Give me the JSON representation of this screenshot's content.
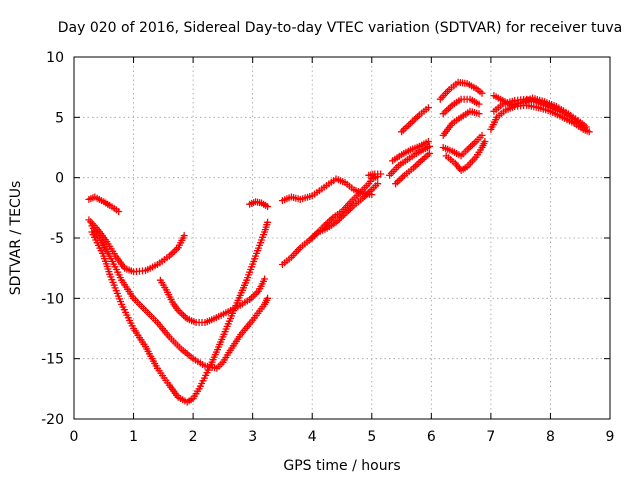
{
  "chart_data": {
    "type": "scatter",
    "title": "Day 020 of 2016, Sidereal Day-to-day VTEC variation (SDTVAR) for receiver tuva",
    "xlabel": "GPS time / hours",
    "ylabel": "SDTVAR / TECUs",
    "xlim": [
      0,
      9
    ],
    "ylim": [
      -20,
      10
    ],
    "xticks": [
      0,
      1,
      2,
      3,
      4,
      5,
      6,
      7,
      8,
      9
    ],
    "yticks": [
      -20,
      -15,
      -10,
      -5,
      0,
      5,
      10
    ],
    "grid": true,
    "legend": "none",
    "marker": "plus",
    "series_color": "#ff0000",
    "series": [
      {
        "points": [
          [
            0.25,
            -1.8
          ],
          [
            0.35,
            -1.6
          ],
          [
            0.5,
            -2.0
          ],
          [
            0.6,
            -2.3
          ],
          [
            0.75,
            -2.8
          ]
        ]
      },
      {
        "points": [
          [
            0.25,
            -3.5
          ],
          [
            0.4,
            -4.3
          ],
          [
            0.55,
            -5.3
          ],
          [
            0.7,
            -6.5
          ],
          [
            0.85,
            -7.5
          ],
          [
            1.0,
            -7.8
          ],
          [
            1.2,
            -7.7
          ],
          [
            1.4,
            -7.2
          ],
          [
            1.6,
            -6.5
          ],
          [
            1.75,
            -5.8
          ],
          [
            1.85,
            -4.8
          ]
        ]
      },
      {
        "points": [
          [
            0.3,
            -4.0
          ],
          [
            0.45,
            -5.2
          ],
          [
            0.6,
            -6.5
          ],
          [
            0.8,
            -8.5
          ],
          [
            1.0,
            -10.0
          ],
          [
            1.2,
            -11.0
          ],
          [
            1.4,
            -12.0
          ],
          [
            1.6,
            -13.2
          ],
          [
            1.8,
            -14.2
          ],
          [
            2.0,
            -15.0
          ],
          [
            2.2,
            -15.6
          ],
          [
            2.4,
            -15.8
          ],
          [
            2.5,
            -15.3
          ],
          [
            2.6,
            -14.5
          ],
          [
            2.8,
            -13.0
          ],
          [
            3.0,
            -11.8
          ],
          [
            3.2,
            -10.5
          ],
          [
            3.25,
            -10.0
          ]
        ]
      },
      {
        "points": [
          [
            0.3,
            -4.5
          ],
          [
            0.5,
            -6.5
          ],
          [
            0.6,
            -8.0
          ],
          [
            0.8,
            -10.5
          ],
          [
            1.0,
            -12.5
          ],
          [
            1.2,
            -14.0
          ],
          [
            1.4,
            -15.8
          ],
          [
            1.6,
            -17.2
          ],
          [
            1.75,
            -18.2
          ],
          [
            1.9,
            -18.6
          ],
          [
            2.0,
            -18.3
          ],
          [
            2.1,
            -17.5
          ],
          [
            2.3,
            -15.5
          ],
          [
            2.5,
            -13.2
          ],
          [
            2.7,
            -10.8
          ],
          [
            2.9,
            -8.5
          ],
          [
            3.05,
            -6.5
          ],
          [
            3.2,
            -4.5
          ],
          [
            3.25,
            -3.7
          ]
        ]
      },
      {
        "points": [
          [
            1.45,
            -8.5
          ],
          [
            1.55,
            -9.3
          ],
          [
            1.65,
            -10.3
          ],
          [
            1.75,
            -11.0
          ],
          [
            1.9,
            -11.7
          ],
          [
            2.05,
            -12.0
          ],
          [
            2.2,
            -12.0
          ],
          [
            2.35,
            -11.7
          ],
          [
            2.55,
            -11.2
          ],
          [
            2.75,
            -10.7
          ],
          [
            2.95,
            -10.1
          ],
          [
            3.1,
            -9.4
          ],
          [
            3.2,
            -8.4
          ]
        ]
      },
      {
        "points": [
          [
            2.95,
            -2.2
          ],
          [
            3.05,
            -2.0
          ],
          [
            3.15,
            -2.1
          ],
          [
            3.25,
            -2.4
          ]
        ]
      },
      {
        "points": [
          [
            3.5,
            -1.9
          ],
          [
            3.65,
            -1.6
          ],
          [
            3.8,
            -1.8
          ],
          [
            4.0,
            -1.5
          ],
          [
            4.2,
            -0.8
          ],
          [
            4.4,
            -0.1
          ],
          [
            4.55,
            -0.4
          ],
          [
            4.7,
            -1.0
          ],
          [
            4.85,
            -1.3
          ],
          [
            5.0,
            -1.4
          ]
        ]
      },
      {
        "points": [
          [
            3.5,
            -7.2
          ],
          [
            3.65,
            -6.6
          ],
          [
            3.8,
            -5.8
          ],
          [
            3.95,
            -5.2
          ],
          [
            4.1,
            -4.5
          ],
          [
            4.25,
            -4.2
          ],
          [
            4.4,
            -3.7
          ],
          [
            4.55,
            -3.0
          ],
          [
            4.7,
            -2.3
          ],
          [
            4.85,
            -1.7
          ],
          [
            5.0,
            -1.0
          ],
          [
            5.1,
            -0.5
          ]
        ]
      },
      {
        "points": [
          [
            4.0,
            -5.0
          ],
          [
            4.1,
            -4.5
          ],
          [
            4.2,
            -4.0
          ],
          [
            4.35,
            -3.3
          ],
          [
            4.5,
            -2.8
          ],
          [
            4.65,
            -2.0
          ],
          [
            4.75,
            -1.5
          ],
          [
            4.85,
            -1.0
          ],
          [
            4.95,
            -0.5
          ],
          [
            5.0,
            -0.1
          ],
          [
            5.1,
            0.1
          ]
        ]
      },
      {
        "points": [
          [
            4.95,
            0.2
          ],
          [
            5.05,
            0.3
          ],
          [
            5.15,
            0.3
          ]
        ]
      },
      {
        "points": [
          [
            5.3,
            0.2
          ],
          [
            5.45,
            1.0
          ],
          [
            5.6,
            1.5
          ],
          [
            5.75,
            2.0
          ],
          [
            5.9,
            2.4
          ],
          [
            5.97,
            2.6
          ]
        ]
      },
      {
        "points": [
          [
            5.35,
            1.4
          ],
          [
            5.5,
            1.9
          ],
          [
            5.65,
            2.3
          ],
          [
            5.8,
            2.6
          ],
          [
            5.95,
            3.0
          ]
        ]
      },
      {
        "points": [
          [
            5.4,
            -0.5
          ],
          [
            5.55,
            0.2
          ],
          [
            5.7,
            0.8
          ],
          [
            5.85,
            1.5
          ],
          [
            5.97,
            2.0
          ]
        ]
      },
      {
        "points": [
          [
            5.5,
            3.8
          ],
          [
            5.65,
            4.5
          ],
          [
            5.8,
            5.2
          ],
          [
            5.95,
            5.8
          ]
        ]
      },
      {
        "points": [
          [
            6.15,
            6.5
          ],
          [
            6.3,
            7.3
          ],
          [
            6.45,
            7.9
          ],
          [
            6.6,
            7.8
          ],
          [
            6.75,
            7.4
          ],
          [
            6.85,
            7.0
          ]
        ]
      },
      {
        "points": [
          [
            6.2,
            5.3
          ],
          [
            6.35,
            6.0
          ],
          [
            6.5,
            6.5
          ],
          [
            6.65,
            6.5
          ],
          [
            6.8,
            6.1
          ]
        ]
      },
      {
        "points": [
          [
            6.2,
            3.5
          ],
          [
            6.35,
            4.5
          ],
          [
            6.5,
            5.0
          ],
          [
            6.65,
            5.5
          ],
          [
            6.8,
            5.3
          ]
        ]
      },
      {
        "points": [
          [
            6.2,
            2.5
          ],
          [
            6.35,
            2.2
          ],
          [
            6.5,
            1.8
          ],
          [
            6.6,
            2.3
          ],
          [
            6.75,
            3.0
          ],
          [
            6.85,
            3.5
          ]
        ]
      },
      {
        "points": [
          [
            6.25,
            1.8
          ],
          [
            6.4,
            1.2
          ],
          [
            6.5,
            0.6
          ],
          [
            6.6,
            0.9
          ],
          [
            6.75,
            1.7
          ],
          [
            6.85,
            2.5
          ],
          [
            6.9,
            3.0
          ]
        ]
      },
      {
        "points": [
          [
            7.0,
            4.0
          ],
          [
            7.1,
            5.0
          ],
          [
            7.25,
            5.6
          ],
          [
            7.4,
            5.9
          ],
          [
            7.6,
            6.0
          ],
          [
            7.8,
            5.8
          ],
          [
            8.0,
            5.5
          ],
          [
            8.2,
            5.0
          ],
          [
            8.4,
            4.5
          ],
          [
            8.55,
            4.0
          ],
          [
            8.65,
            3.8
          ]
        ]
      },
      {
        "points": [
          [
            7.05,
            6.8
          ],
          [
            7.2,
            6.4
          ],
          [
            7.35,
            6.0
          ],
          [
            7.5,
            6.2
          ],
          [
            7.7,
            6.6
          ],
          [
            7.9,
            6.3
          ],
          [
            8.1,
            5.9
          ],
          [
            8.3,
            5.3
          ],
          [
            8.5,
            4.6
          ],
          [
            8.6,
            4.2
          ]
        ]
      },
      {
        "points": [
          [
            7.05,
            5.5
          ],
          [
            7.2,
            6.1
          ],
          [
            7.4,
            6.4
          ],
          [
            7.6,
            6.5
          ],
          [
            7.8,
            6.2
          ],
          [
            8.0,
            5.8
          ],
          [
            8.2,
            5.4
          ],
          [
            8.4,
            4.8
          ],
          [
            8.55,
            4.2
          ]
        ]
      }
    ]
  }
}
